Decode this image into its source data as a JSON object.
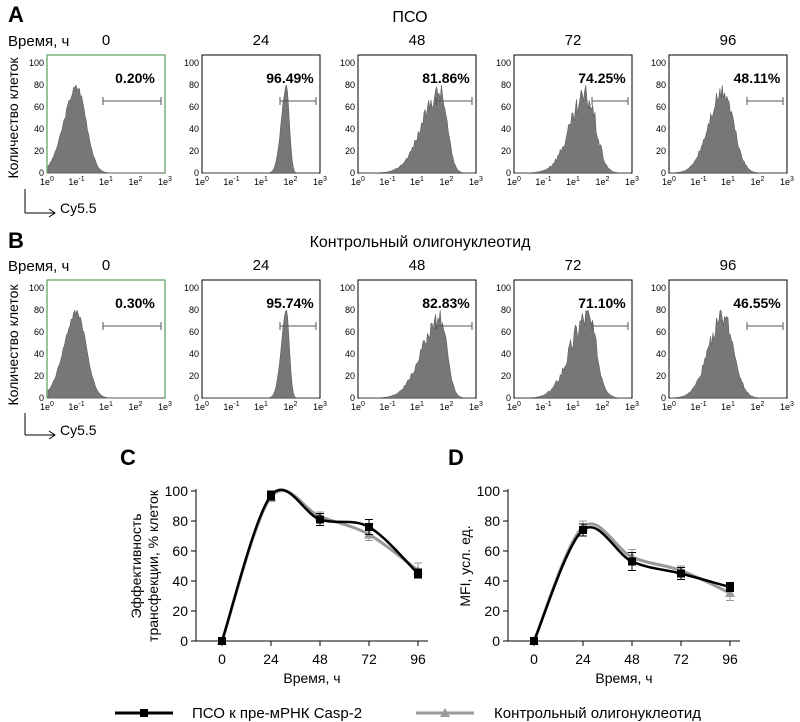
{
  "panels": {
    "A": {
      "letter": "A",
      "title": "ПСО",
      "time_label": "Время, ч",
      "y_axis_label": "Количество клеток",
      "x_axis_label": "Cy5.5",
      "times": [
        "0",
        "24",
        "48",
        "72",
        "96"
      ],
      "percents": [
        "0.20%",
        "96.49%",
        "81.86%",
        "74.25%",
        "48.11%"
      ]
    },
    "B": {
      "letter": "B",
      "title": "Контрольный олигонуклеотид",
      "time_label": "Время, ч",
      "y_axis_label": "Количество клеток",
      "x_axis_label": "Cy5.5",
      "times": [
        "0",
        "24",
        "48",
        "72",
        "96"
      ],
      "percents": [
        "0.30%",
        "95.74%",
        "82.83%",
        "71.10%",
        "46.55%"
      ]
    },
    "C": {
      "letter": "C"
    },
    "D": {
      "letter": "D"
    }
  },
  "histogram": {
    "y_ticks": [
      "0",
      "20",
      "40",
      "60",
      "80",
      "100"
    ],
    "x_ticks": [
      {
        "base": "1e",
        "exp": "0"
      },
      {
        "base": "1e",
        "exp": "-1"
      },
      {
        "base": "1e",
        "exp": "1"
      },
      {
        "base": "1e",
        "exp": "2"
      },
      {
        "base": "1e",
        "exp": "3"
      }
    ]
  },
  "chart_data": [
    {
      "type": "line",
      "panel": "C",
      "ylabel_line1": "Эффективность",
      "ylabel_line2": "трансфекции, % клеток",
      "xlabel": "Время, ч",
      "x": [
        0,
        24,
        48,
        72,
        96
      ],
      "xlim": [
        0,
        96
      ],
      "ylim": [
        0,
        100
      ],
      "y_ticks": [
        0,
        20,
        40,
        60,
        80,
        100
      ],
      "series": [
        {
          "name": "ПСО к пре-мРНК Casp-2",
          "color": "#000000",
          "marker": "square",
          "values": [
            0,
            97,
            81,
            76,
            45
          ],
          "errors": [
            0,
            3,
            4,
            5,
            3
          ]
        },
        {
          "name": "Контрольный олигонуклеотид",
          "color": "#999999",
          "marker": "triangle",
          "values": [
            0,
            96,
            83,
            71,
            47
          ],
          "errors": [
            0,
            3,
            3,
            4,
            5
          ]
        }
      ]
    },
    {
      "type": "line",
      "panel": "D",
      "ylabel_line1": "MFI, усл. ед.",
      "ylabel_line2": "",
      "xlabel": "Время, ч",
      "x": [
        0,
        24,
        48,
        72,
        96
      ],
      "xlim": [
        0,
        96
      ],
      "ylim": [
        0,
        100
      ],
      "y_ticks": [
        0,
        20,
        40,
        60,
        80,
        100
      ],
      "series": [
        {
          "name": "ПСО к пре-мРНК Casp-2",
          "color": "#000000",
          "marker": "square",
          "values": [
            0,
            74,
            53,
            45,
            36
          ],
          "errors": [
            0,
            4,
            6,
            4,
            3
          ]
        },
        {
          "name": "Контрольный олигонуклеотид",
          "color": "#999999",
          "marker": "triangle",
          "values": [
            0,
            76,
            56,
            47,
            32
          ],
          "errors": [
            0,
            4,
            5,
            3,
            5
          ]
        }
      ]
    }
  ],
  "legend": [
    {
      "label": "ПСО к пре-мРНК Casp-2",
      "color": "#000000",
      "marker": "square"
    },
    {
      "label": "Контрольный олигонуклеотид",
      "color": "#999999",
      "marker": "triangle"
    }
  ],
  "colors": {
    "histogram_fill": "#777777",
    "gate_line": "#555555",
    "first_panel_frame": "#3a8a3a"
  }
}
